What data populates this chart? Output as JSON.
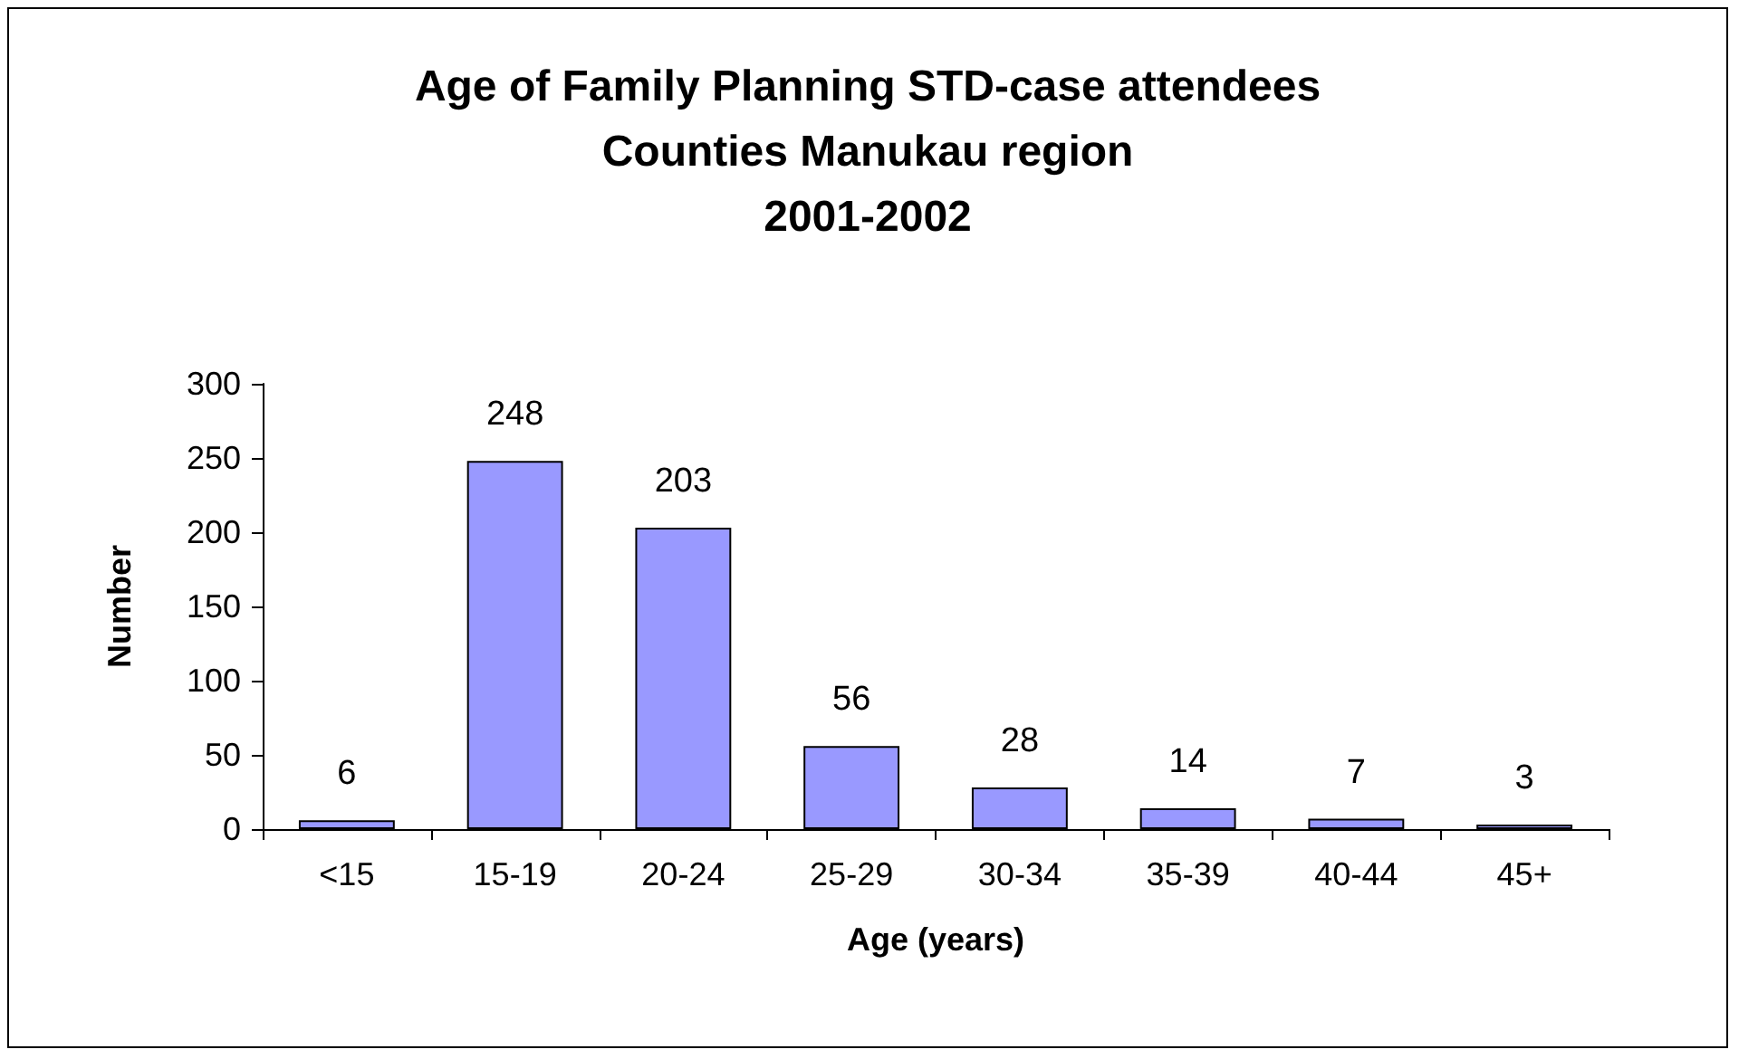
{
  "chart_data": {
    "type": "bar",
    "title": "Age of Family Planning STD-case attendees\nCounties Manukau region\n2001-2002",
    "xlabel": "Age (years)",
    "ylabel": "Number",
    "categories": [
      "<15",
      "15-19",
      "20-24",
      "25-29",
      "30-34",
      "35-39",
      "40-44",
      "45+"
    ],
    "values": [
      6,
      248,
      203,
      56,
      28,
      14,
      7,
      3
    ],
    "color": "#9999ff",
    "data_labels": true,
    "ylim": [
      0,
      300
    ],
    "yticks": [
      0,
      50,
      100,
      150,
      200,
      250,
      300
    ]
  }
}
